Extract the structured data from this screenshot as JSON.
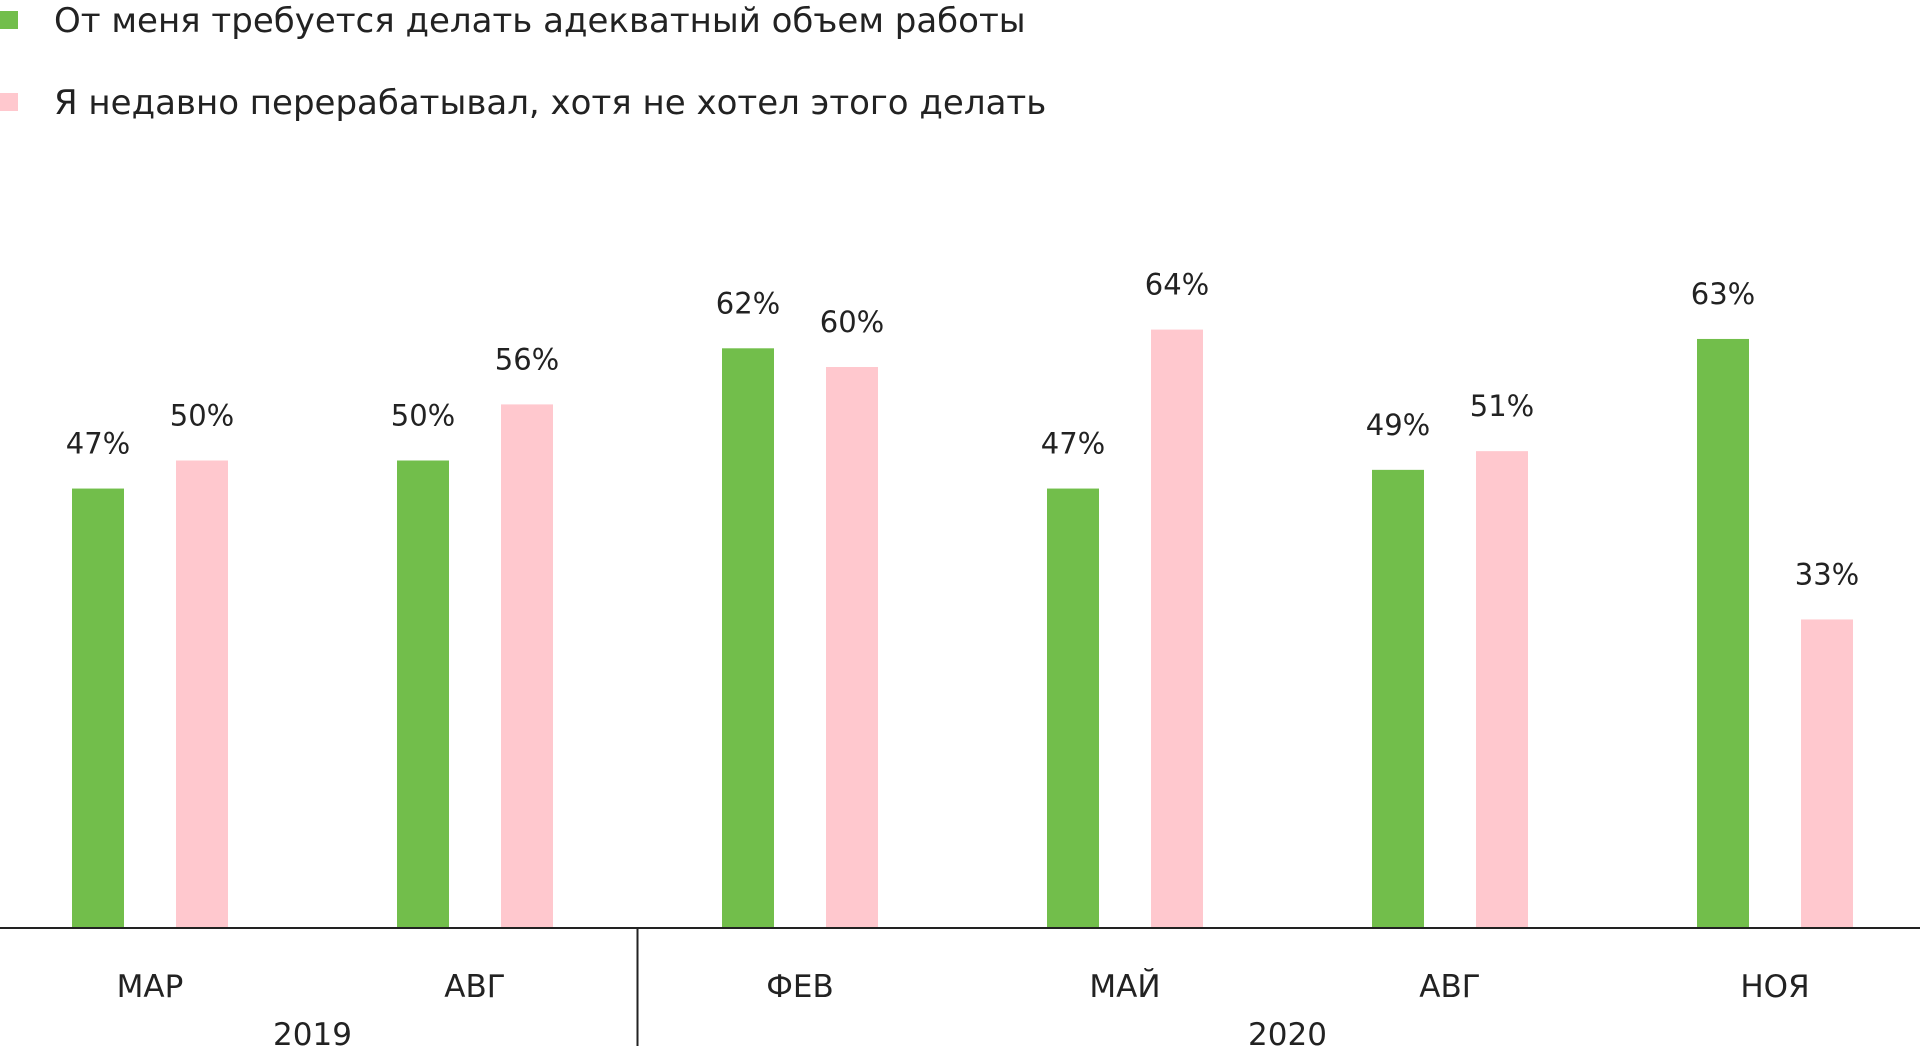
{
  "chart_data": {
    "type": "bar",
    "categories": [
      "МАР",
      "АВГ",
      "ФЕВ",
      "МАЙ",
      "АВГ",
      "НОЯ"
    ],
    "groups": [
      {
        "label": "2019",
        "categories": [
          0,
          1
        ]
      },
      {
        "label": "2020",
        "categories": [
          2,
          3,
          4,
          5
        ]
      }
    ],
    "series": [
      {
        "name": "От меня требуется делать адекватный объем работы",
        "color": "#72BE4B",
        "values": [
          47,
          50,
          62,
          47,
          49,
          63
        ],
        "labels": [
          "47%",
          "50%",
          "62%",
          "47%",
          "49%",
          "63%"
        ]
      },
      {
        "name": "Я недавно перерабатывал, хотя не хотел этого делать",
        "color": "#FFC8CE",
        "values": [
          50,
          56,
          60,
          64,
          51,
          33
        ],
        "labels": [
          "50%",
          "56%",
          "60%",
          "64%",
          "51%",
          "33%"
        ]
      }
    ],
    "ylim": [
      0,
      100
    ],
    "grid": false,
    "legend": "top-left",
    "title": "",
    "xlabel": "",
    "ylabel": ""
  }
}
